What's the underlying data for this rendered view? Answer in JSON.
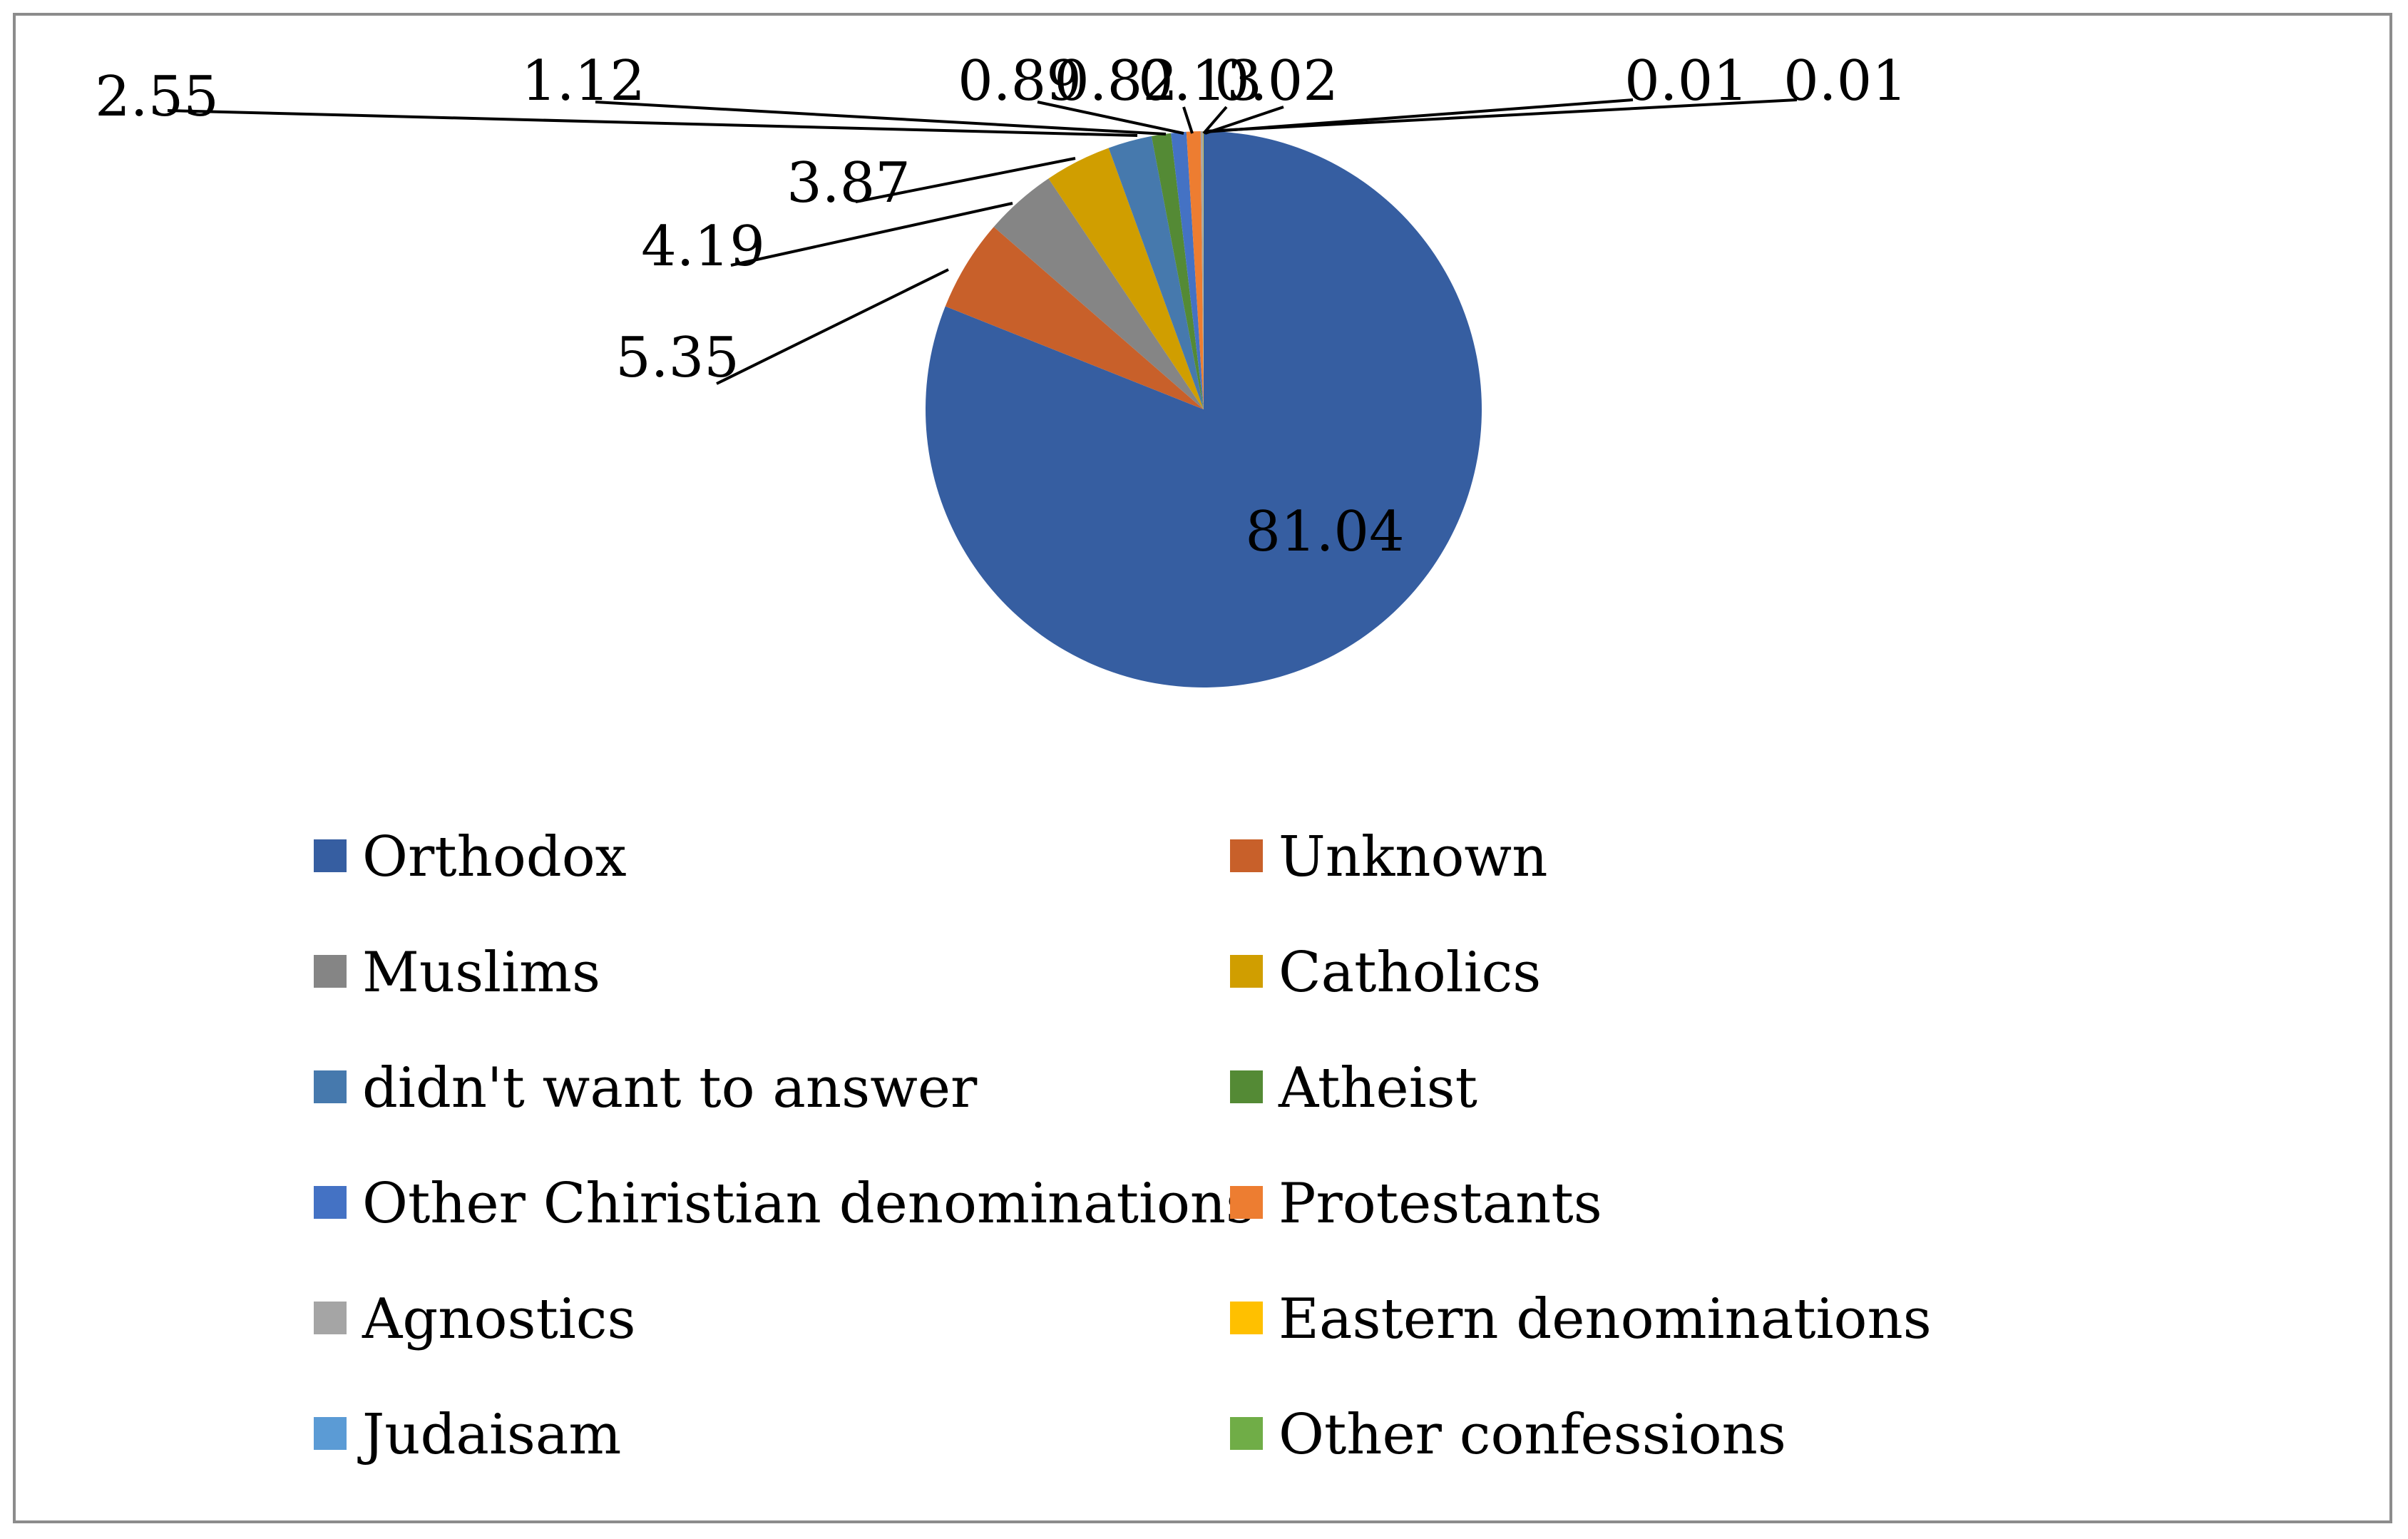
{
  "chart_data": {
    "type": "pie",
    "title": "",
    "slices": [
      {
        "name": "Orthodox",
        "value": 81.04,
        "label": "81.04",
        "color": "#365ea1"
      },
      {
        "name": "Unknown",
        "value": 5.35,
        "label": "5.35",
        "color": "#c8602a"
      },
      {
        "name": "Muslims",
        "value": 4.19,
        "label": "4.19",
        "color": "#858585"
      },
      {
        "name": "Catholics",
        "value": 3.87,
        "label": "3.87",
        "color": "#d09e00"
      },
      {
        "name": "didn't want to answer",
        "value": 2.55,
        "label": "2.55",
        "color": "#4679ad"
      },
      {
        "name": "Atheist",
        "value": 1.12,
        "label": "1.12",
        "color": "#548a35"
      },
      {
        "name": "Other Chiristian denominations",
        "value": 0.89,
        "label": "0.89",
        "color": "#4472c4"
      },
      {
        "name": "Protestants",
        "value": 0.82,
        "label": "0.82",
        "color": "#ed7d31"
      },
      {
        "name": "Agnostics",
        "value": 0.13,
        "label": "0.13",
        "color": "#a5a5a5"
      },
      {
        "name": "Eastern denominations",
        "value": 0.02,
        "label": "0.02",
        "color": "#ffc000"
      },
      {
        "name": "Judaisam",
        "value": 0.01,
        "label": "0.01",
        "color": "#5b9bd5"
      },
      {
        "name": "Other confessions",
        "value": 0.01,
        "label": "0.01",
        "color": "#70ad47"
      }
    ],
    "legend": {
      "position": "bottom",
      "columns": 2
    }
  }
}
